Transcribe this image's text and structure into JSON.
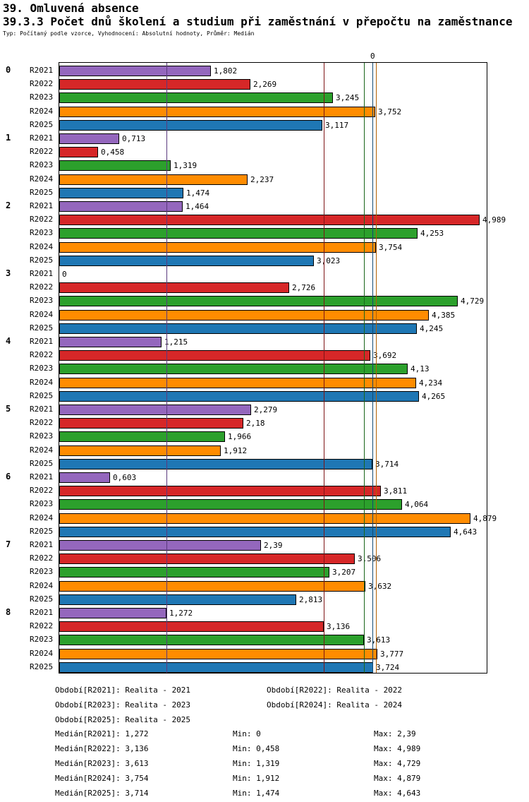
{
  "title": "39. Omluvená absence",
  "subtitle": "39.3.3 Počet dnů školení a studium při zaměstnání v přepočtu na zaměstnance",
  "meta": "Typ: Počítaný podle vzorce, Vyhodnocení: Absolutní hodnoty, Průměr: Medián",
  "chart_data": {
    "type": "bar",
    "orientation": "horizontal",
    "xlim": [
      0,
      5.07
    ],
    "axis_top_label": "0",
    "grid": false,
    "series": [
      {
        "name": "R2021",
        "color": "#9467bd",
        "median": 1.272,
        "median_color": "#5a3a7e"
      },
      {
        "name": "R2022",
        "color": "#d62728",
        "median": 3.136,
        "median_color": "#7f1416"
      },
      {
        "name": "R2023",
        "color": "#2ca02c",
        "median": 3.613,
        "median_color": "#1a661a"
      },
      {
        "name": "R2024",
        "color": "#ff8c00",
        "median": 3.754,
        "median_color": "#b35f00"
      },
      {
        "name": "R2025",
        "color": "#1f77b4",
        "median": 3.714,
        "median_color": "#124a73"
      }
    ],
    "groups": [
      {
        "label": "0",
        "values": [
          1.802,
          2.269,
          3.245,
          3.752,
          3.117
        ],
        "value_labels": [
          "1,802",
          "2,269",
          "3,245",
          "3,752",
          "3,117"
        ]
      },
      {
        "label": "1",
        "values": [
          0.713,
          0.458,
          1.319,
          2.237,
          1.474
        ],
        "value_labels": [
          "0,713",
          "0,458",
          "1,319",
          "2,237",
          "1,474"
        ]
      },
      {
        "label": "2",
        "values": [
          1.464,
          4.989,
          4.253,
          3.754,
          3.023
        ],
        "value_labels": [
          "1,464",
          "4,989",
          "4,253",
          "3,754",
          "3,023"
        ]
      },
      {
        "label": "3",
        "values": [
          0,
          2.726,
          4.729,
          4.385,
          4.245
        ],
        "value_labels": [
          "0",
          "2,726",
          "4,729",
          "4,385",
          "4,245"
        ]
      },
      {
        "label": "4",
        "values": [
          1.215,
          3.692,
          4.13,
          4.234,
          4.265
        ],
        "value_labels": [
          "1,215",
          "3,692",
          "4,13",
          "4,234",
          "4,265"
        ]
      },
      {
        "label": "5",
        "values": [
          2.279,
          2.18,
          1.966,
          1.912,
          3.714
        ],
        "value_labels": [
          "2,279",
          "2,18",
          "1,966",
          "1,912",
          "3,714"
        ]
      },
      {
        "label": "6",
        "values": [
          0.603,
          3.811,
          4.064,
          4.879,
          4.643
        ],
        "value_labels": [
          "0,603",
          "3,811",
          "4,064",
          "4,879",
          "4,643"
        ]
      },
      {
        "label": "7",
        "values": [
          2.39,
          3.506,
          3.207,
          3.632,
          2.813
        ],
        "value_labels": [
          "2,39",
          "3,506",
          "3,207",
          "3,632",
          "2,813"
        ]
      },
      {
        "label": "8",
        "values": [
          1.272,
          3.136,
          3.613,
          3.777,
          3.724
        ],
        "value_labels": [
          "1,272",
          "3,136",
          "3,613",
          "3,777",
          "3,724"
        ]
      }
    ]
  },
  "legend_columns": [
    [
      "Období[R2021]: Realita - 2021",
      "Období[R2023]: Realita - 2023",
      "Období[R2025]: Realita - 2025"
    ],
    [
      "Období[R2022]: Realita - 2022",
      "Období[R2024]: Realita - 2024"
    ]
  ],
  "stats_rows": [
    [
      "Medián[R2021]: 1,272",
      "Min: 0",
      "Max: 2,39"
    ],
    [
      "Medián[R2022]: 3,136",
      "Min: 0,458",
      "Max: 4,989"
    ],
    [
      "Medián[R2023]: 3,613",
      "Min: 1,319",
      "Max: 4,729"
    ],
    [
      "Medián[R2024]: 3,754",
      "Min: 1,912",
      "Max: 4,879"
    ],
    [
      "Medián[R2025]: 3,714",
      "Min: 1,474",
      "Max: 4,643"
    ]
  ]
}
